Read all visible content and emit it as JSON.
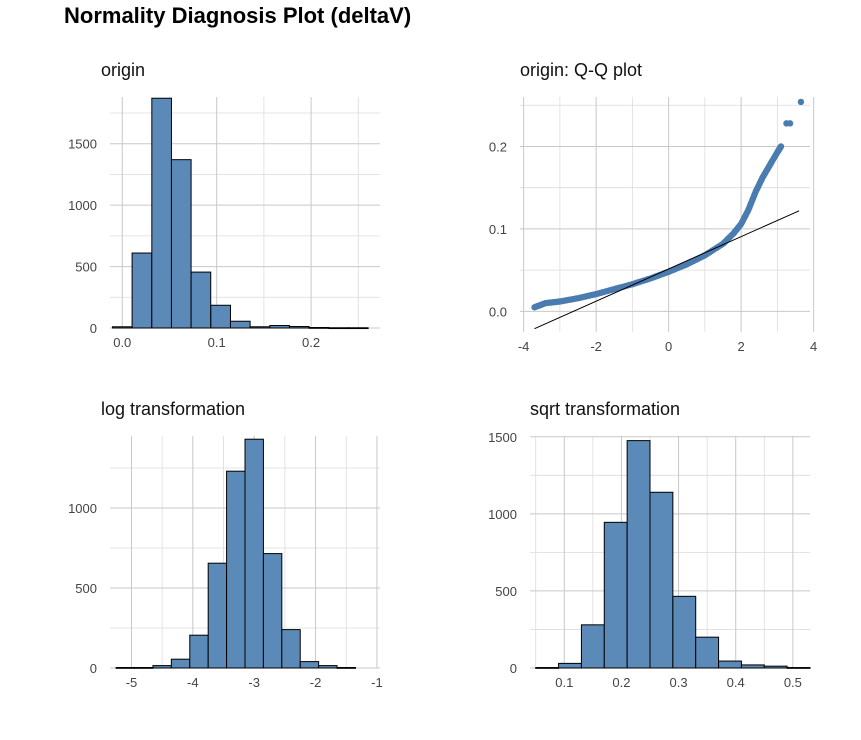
{
  "title": "Normality Diagnosis Plot (deltaV)",
  "colors": {
    "fill": "#5b8ab8",
    "point": "#4a7cb0",
    "outline": "#000000",
    "grid": "#c8c8c8"
  },
  "chart_data": [
    {
      "type": "bar",
      "title": "origin",
      "bin_width": 0.0208,
      "bin_centers": [
        0.0,
        0.0208,
        0.0417,
        0.0625,
        0.0833,
        0.1042,
        0.125,
        0.1458,
        0.1667,
        0.1875,
        0.2083,
        0.2292,
        0.25
      ],
      "values": [
        10,
        610,
        1870,
        1370,
        455,
        185,
        55,
        10,
        20,
        12,
        4,
        2,
        2
      ],
      "xlim": [
        -0.013,
        0.273
      ],
      "ylim": [
        0,
        1880
      ],
      "xticks": [
        0.0,
        0.1,
        0.2
      ],
      "xtick_labels": [
        "0.0",
        "0.1",
        "0.2"
      ],
      "yticks": [
        0,
        500,
        1000,
        1500
      ],
      "ytick_labels": [
        "0",
        "500",
        "1000",
        "1500"
      ]
    },
    {
      "type": "scatter",
      "title": "origin: Q-Q plot",
      "xlabel": "",
      "ylabel": "",
      "xlim": [
        -4.1,
        3.9
      ],
      "ylim": [
        -0.025,
        0.26
      ],
      "xticks": [
        -4,
        -2,
        0,
        2,
        4
      ],
      "xtick_labels": [
        "-4",
        "-2",
        "0",
        "2",
        "4"
      ],
      "yticks": [
        0.0,
        0.1,
        0.2
      ],
      "ytick_labels": [
        "0.0",
        "0.1",
        "0.2"
      ],
      "curve": [
        [
          -3.7,
          0.005
        ],
        [
          -3.4,
          0.01
        ],
        [
          -3.0,
          0.012
        ],
        [
          -2.5,
          0.016
        ],
        [
          -2.0,
          0.021
        ],
        [
          -1.5,
          0.027
        ],
        [
          -1.0,
          0.033
        ],
        [
          -0.5,
          0.04
        ],
        [
          0.0,
          0.048
        ],
        [
          0.5,
          0.057
        ],
        [
          1.0,
          0.068
        ],
        [
          1.5,
          0.082
        ],
        [
          1.8,
          0.095
        ],
        [
          2.0,
          0.106
        ],
        [
          2.2,
          0.123
        ],
        [
          2.4,
          0.145
        ],
        [
          2.6,
          0.163
        ],
        [
          2.8,
          0.178
        ],
        [
          3.0,
          0.193
        ],
        [
          3.1,
          0.2
        ]
      ],
      "outliers": [
        [
          3.25,
          0.228
        ],
        [
          3.35,
          0.228
        ],
        [
          3.65,
          0.254
        ]
      ],
      "line": {
        "x": [
          -3.7,
          3.6
        ],
        "y": [
          -0.021,
          0.122
        ]
      }
    },
    {
      "type": "bar",
      "title": "log transformation",
      "bin_width": 0.3,
      "bin_centers": [
        -5.1,
        -4.8,
        -4.5,
        -4.2,
        -3.9,
        -3.6,
        -3.3,
        -3.0,
        -2.7,
        -2.4,
        -2.1,
        -1.8,
        -1.5
      ],
      "values": [
        3,
        3,
        15,
        55,
        205,
        655,
        1230,
        1430,
        715,
        240,
        40,
        15,
        3
      ],
      "xlim": [
        -5.35,
        -0.95
      ],
      "ylim": [
        0,
        1450
      ],
      "xticks": [
        -5,
        -4,
        -3,
        -2,
        -1
      ],
      "xtick_labels": [
        "-5",
        "-4",
        "-3",
        "-2",
        "-1"
      ],
      "yticks": [
        0,
        500,
        1000
      ],
      "ytick_labels": [
        "0",
        "500",
        "1000"
      ]
    },
    {
      "type": "bar",
      "title": "sqrt transformation",
      "bin_width": 0.04,
      "bin_centers": [
        0.07,
        0.11,
        0.15,
        0.19,
        0.23,
        0.27,
        0.31,
        0.35,
        0.39,
        0.43,
        0.47,
        0.51
      ],
      "values": [
        3,
        30,
        280,
        945,
        1475,
        1140,
        465,
        200,
        45,
        20,
        12,
        3
      ],
      "xlim": [
        0.04,
        0.53
      ],
      "ylim": [
        0,
        1505
      ],
      "xticks": [
        0.1,
        0.2,
        0.3,
        0.4,
        0.5
      ],
      "xtick_labels": [
        "0.1",
        "0.2",
        "0.3",
        "0.4",
        "0.5"
      ],
      "yticks": [
        0,
        500,
        1000,
        1500
      ],
      "ytick_labels": [
        "0",
        "500",
        "1000",
        "1500"
      ]
    }
  ]
}
